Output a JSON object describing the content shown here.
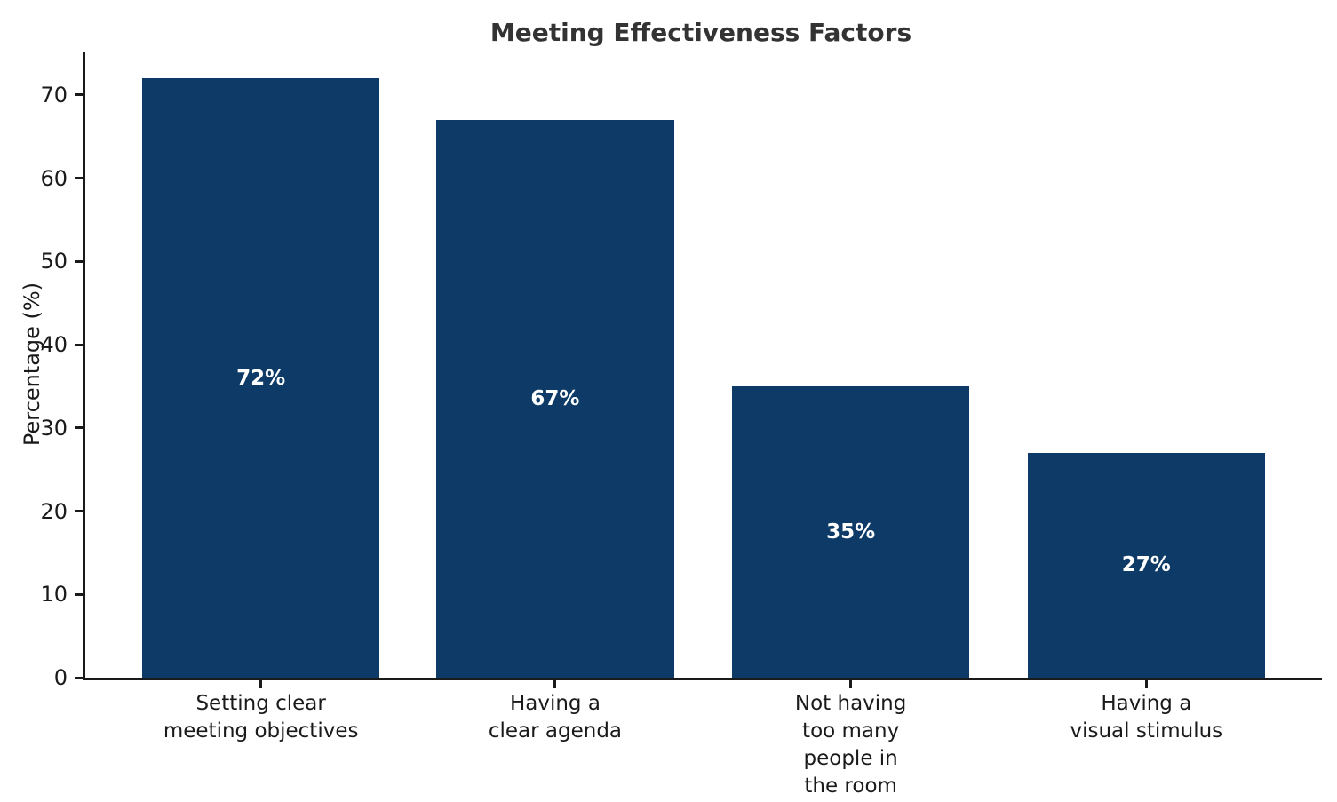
{
  "chart_data": {
    "type": "bar",
    "title": "Meeting Effectiveness Factors",
    "xlabel": "",
    "ylabel": "Percentage (%)",
    "categories": [
      "Setting clear\nmeeting objectives",
      "Having a\nclear agenda",
      "Not having\ntoo many\npeople in\nthe room",
      "Having a\nvisual stimulus"
    ],
    "values": [
      72,
      67,
      35,
      27
    ],
    "value_labels": [
      "72%",
      "67%",
      "35%",
      "27%"
    ],
    "ylim": [
      0,
      75.2
    ],
    "yticks": [
      0,
      10,
      20,
      30,
      40,
      50,
      60,
      70
    ],
    "grid": false,
    "legend": "none",
    "bar_color": "#0d3a66",
    "value_label_color": "#ffffff",
    "title_color": "#333333",
    "axis_color": "#1a1a1a",
    "bar_centers_pct": [
      14.2,
      38.0,
      61.9,
      85.8
    ],
    "bar_width_pct": 19.2
  }
}
